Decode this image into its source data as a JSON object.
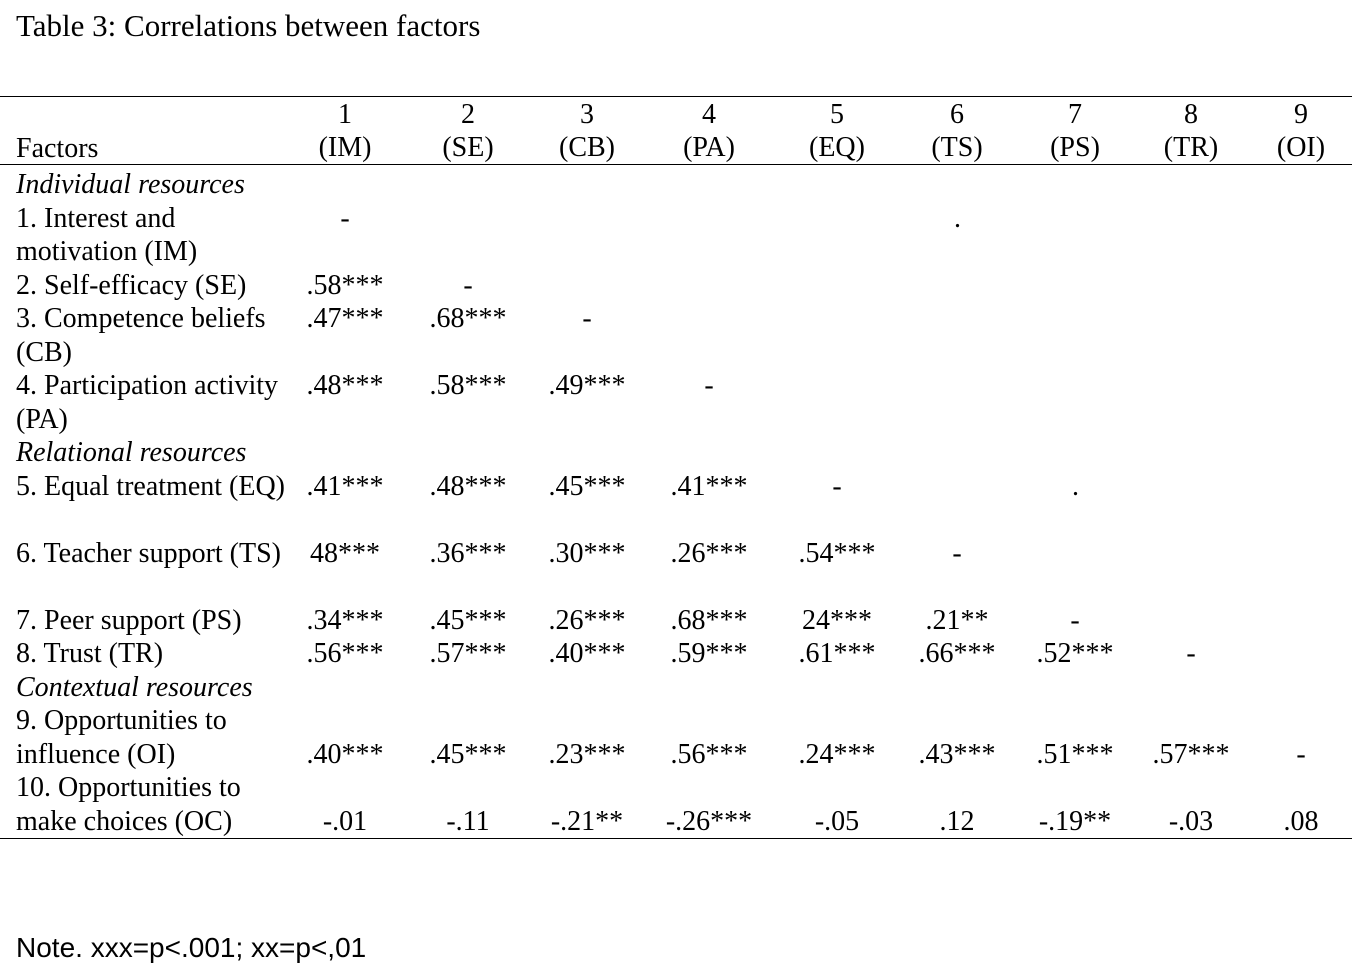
{
  "title": "Table 3: Correlations between factors",
  "header": {
    "factors_label": "Factors",
    "columns": [
      {
        "num": "1",
        "abbr": "(IM)"
      },
      {
        "num": "2",
        "abbr": "(SE)"
      },
      {
        "num": "3",
        "abbr": "(CB)"
      },
      {
        "num": "4",
        "abbr": "(PA)"
      },
      {
        "num": "5",
        "abbr": "(EQ)"
      },
      {
        "num": "6",
        "abbr": "(TS)"
      },
      {
        "num": "7",
        "abbr": "(PS)"
      },
      {
        "num": "8",
        "abbr": "(TR)"
      },
      {
        "num": "9",
        "abbr": "(OI)"
      }
    ]
  },
  "rows": [
    {
      "kind": "section",
      "label": "Individual resources"
    },
    {
      "kind": "data",
      "label": "1. Interest and motivation (IM)",
      "lines": 2,
      "cells": [
        "-"
      ]
    },
    {
      "kind": "data",
      "label": "2. Self-efficacy (SE)",
      "lines": 1,
      "cells": [
        ".58***",
        "-"
      ]
    },
    {
      "kind": "data",
      "label": "3. Competence beliefs (CB)",
      "lines": 2,
      "cells": [
        ".47***",
        ".68***",
        "-"
      ]
    },
    {
      "kind": "data",
      "label": "4. Participation activity (PA)",
      "lines": 2,
      "cells": [
        ".48***",
        ".58***",
        ".49***",
        "-"
      ]
    },
    {
      "kind": "section",
      "label": "Relational resources"
    },
    {
      "kind": "data",
      "label": "5. Equal  treatment (EQ)",
      "lines": 2,
      "cells": [
        ".41***",
        ".48***",
        ".45***",
        ".41***",
        "-"
      ]
    },
    {
      "kind": "data",
      "label": "6. Teacher support (TS)",
      "lines": 2,
      "cells": [
        "48***",
        ".36***",
        ".30***",
        ".26***",
        ".54***",
        "-"
      ]
    },
    {
      "kind": "data",
      "label": "7. Peer support (PS)",
      "lines": 1,
      "cells": [
        ".34***",
        ".45***",
        ".26***",
        ".68***",
        "24***",
        ".21**",
        "-"
      ]
    },
    {
      "kind": "data",
      "label": "8. Trust (TR)",
      "lines": 1,
      "cells": [
        ".56***",
        ".57***",
        ".40***",
        ".59***",
        ".61***",
        ".66***",
        ".52***",
        "-"
      ]
    },
    {
      "kind": "section",
      "label": "Contextual resources"
    },
    {
      "kind": "data",
      "label": "9. Opportunities to influence (OI)",
      "lines": 2,
      "valign": "bottom",
      "cells": [
        ".40***",
        ".45***",
        ".23***",
        ".56***",
        ".24***",
        ".43***",
        ".51***",
        ".57***",
        "-"
      ]
    },
    {
      "kind": "data",
      "label": "10. Opportunities to make choices (OC)",
      "lines": 2,
      "valign": "bottom",
      "cells": [
        "-.01",
        "-.11",
        "-.21**",
        "-.26***",
        "-.05",
        ".12",
        "-.19**",
        "-.03",
        ".08"
      ]
    }
  ],
  "stray_dots": [
    {
      "row": 1,
      "col": 5,
      "text": "."
    },
    {
      "row": 6,
      "col": 6,
      "text": "."
    }
  ],
  "note": "Note. xxx=p<.001; xx=p<,01"
}
